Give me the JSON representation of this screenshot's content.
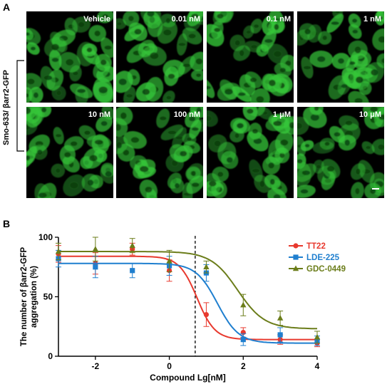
{
  "panel_a": {
    "letter": "A",
    "row_label": "Smo-633/ βarr2-GFP",
    "tiles": [
      {
        "label": "Vehicle"
      },
      {
        "label": "0.01 nM"
      },
      {
        "label": "0.1 nM"
      },
      {
        "label": "1 nM"
      },
      {
        "label": "10 nM"
      },
      {
        "label": "100 nM"
      },
      {
        "label": "1 μM"
      },
      {
        "label": "10 μM"
      }
    ],
    "cell_color": "#36c83a",
    "background_color": "#000000"
  },
  "panel_b": {
    "letter": "B"
  },
  "chart_data": {
    "type": "scatter",
    "xlabel": "Compound Lg[nM]",
    "ylabel": "The number of βarr2-GFP aggregation (%)",
    "xlim": [
      -3,
      4
    ],
    "ylim": [
      0,
      100
    ],
    "xticks": [
      -2,
      0,
      2,
      4
    ],
    "yticks": [
      0,
      50,
      100
    ],
    "grid": false,
    "legend_position": "top-right",
    "reference_line_x": 0.7,
    "series": [
      {
        "name": "TT22",
        "color": "#e8392e",
        "marker": "circle",
        "points": [
          {
            "x": -3,
            "y": 86,
            "err": 7
          },
          {
            "x": -2,
            "y": 78,
            "err": 9
          },
          {
            "x": -1,
            "y": 90,
            "err": 5
          },
          {
            "x": 0,
            "y": 72,
            "err": 9
          },
          {
            "x": 1,
            "y": 35,
            "err": 10
          },
          {
            "x": 2,
            "y": 20,
            "err": 4
          },
          {
            "x": 3,
            "y": 14,
            "err": 4
          },
          {
            "x": 4,
            "y": 11,
            "err": 3
          }
        ],
        "fit": {
          "top": 84,
          "bottom": 14,
          "ic50": 0.75,
          "hill": 1.8
        }
      },
      {
        "name": "LDE-225",
        "color": "#1f7fcf",
        "marker": "square",
        "points": [
          {
            "x": -3,
            "y": 82,
            "err": 7
          },
          {
            "x": -2,
            "y": 75,
            "err": 9
          },
          {
            "x": -1,
            "y": 72,
            "err": 6
          },
          {
            "x": 0,
            "y": 76,
            "err": 8
          },
          {
            "x": 1,
            "y": 70,
            "err": 7
          },
          {
            "x": 2,
            "y": 14,
            "err": 5
          },
          {
            "x": 3,
            "y": 18,
            "err": 6
          },
          {
            "x": 4,
            "y": 13,
            "err": 4
          }
        ],
        "fit": {
          "top": 78,
          "bottom": 11,
          "ic50": 1.3,
          "hill": 1.5
        }
      },
      {
        "name": "GDC-0449",
        "color": "#6b7d1a",
        "marker": "triangle",
        "points": [
          {
            "x": -3,
            "y": 88,
            "err": 7
          },
          {
            "x": -2,
            "y": 90,
            "err": 10
          },
          {
            "x": -1,
            "y": 93,
            "err": 6
          },
          {
            "x": 0,
            "y": 80,
            "err": 9
          },
          {
            "x": 1,
            "y": 75,
            "err": 5
          },
          {
            "x": 2,
            "y": 43,
            "err": 9
          },
          {
            "x": 3,
            "y": 32,
            "err": 6
          },
          {
            "x": 4,
            "y": 16,
            "err": 5
          }
        ],
        "fit": {
          "top": 88,
          "bottom": 23,
          "ic50": 1.85,
          "hill": 1.2
        }
      }
    ]
  }
}
